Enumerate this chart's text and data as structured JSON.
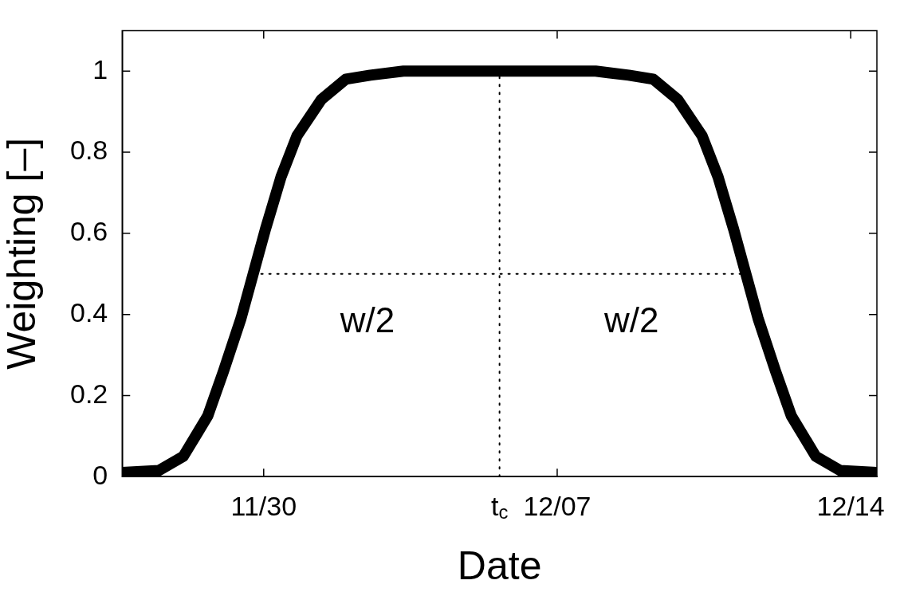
{
  "chart_data": {
    "type": "line",
    "xlabel": "Date",
    "ylabel": "Weighting [–]",
    "xlim": [
      "--11-26T15:00",
      "--12-14T15:00"
    ],
    "xticks": [
      {
        "value": "--11-30",
        "label": "11/30"
      },
      {
        "value": "--12-05T15:00",
        "label": "t$_{c}$"
      },
      {
        "value": "--12-07",
        "label": "12/07"
      },
      {
        "value": "--12-14",
        "label": "12/14"
      }
    ],
    "ylim": [
      0,
      1.1
    ],
    "yticks": [
      0,
      0.2,
      0.4,
      0.6,
      0.8,
      1
    ],
    "grid": false,
    "legend": false,
    "marker": "none",
    "series": [
      {
        "color": "#000000",
        "line_style": "solid",
        "x": [
          "--11-26T15:00",
          "--11-27T12:00",
          "--11-28T02:00",
          "--11-28T16:00",
          "--11-29T01:00",
          "--11-29T11:00",
          "--11-29T18:00",
          "--11-30T01:00",
          "--11-30T10:00",
          "--11-30T19:00",
          "--12-01T09:00",
          "--12-01T23:00",
          "--12-02T13:00",
          "--12-03T08:00",
          "--12-05T15:00",
          "--12-07T22:00",
          "--12-08T17:00",
          "--12-09T07:00",
          "--12-09T21:00",
          "--12-10T11:00",
          "--12-10T20:00",
          "--12-11T05:00",
          "--12-11T12:00",
          "--12-11T19:00",
          "--12-12T05:00",
          "--12-12T14:00",
          "--12-13T04:00",
          "--12-13T18:00",
          "--12-14T15:00"
        ],
        "values": [
          0.01,
          0.015,
          0.05,
          0.15,
          0.26,
          0.39,
          0.5,
          0.61,
          0.74,
          0.84,
          0.93,
          0.98,
          0.99,
          1,
          1,
          1,
          0.99,
          0.98,
          0.93,
          0.84,
          0.74,
          0.61,
          0.5,
          0.39,
          0.26,
          0.15,
          0.05,
          0.015,
          0.01
        ]
      },
      {
        "color": "#000000",
        "line_style": "dotted",
        "x": [
          "--11-29T18:00",
          "--12-11T12:00"
        ],
        "values": [
          0.5,
          0.5
        ]
      },
      {
        "color": "#000000",
        "line_style": "dotted",
        "x": [
          "--12-05T15:00",
          "--12-05T15:00"
        ],
        "values": [
          0,
          1
        ]
      }
    ],
    "annotations": [
      "w/2",
      "w/2"
    ]
  }
}
